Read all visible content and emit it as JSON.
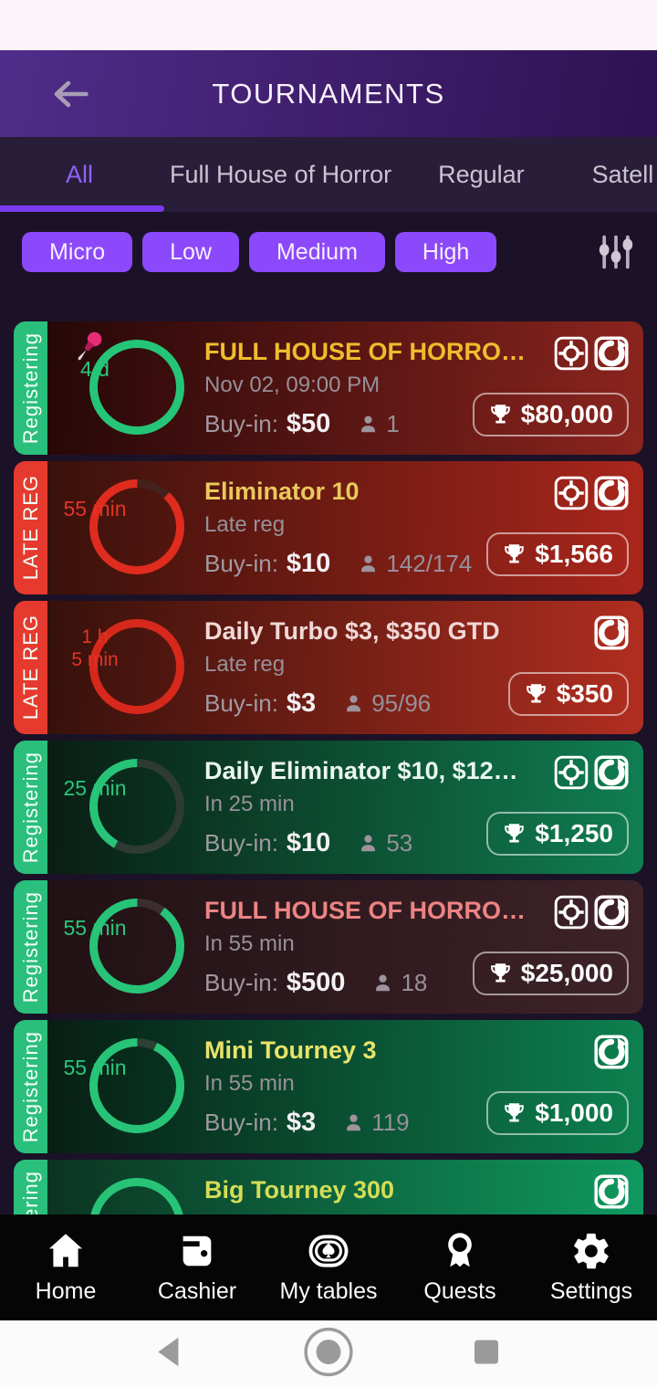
{
  "header": {
    "title": "TOURNAMENTS"
  },
  "tabs": [
    {
      "label": "All",
      "active": true
    },
    {
      "label": "Full House of Horror",
      "active": false
    },
    {
      "label": "Regular",
      "active": false
    },
    {
      "label": "Satell",
      "active": false
    }
  ],
  "filters": {
    "chips": [
      "Micro",
      "Low",
      "Medium",
      "High"
    ],
    "sliders_icon": "filter-sliders-icon"
  },
  "labels": {
    "buyin": "Buy-in:"
  },
  "colors": {
    "accent_purple": "#8b49fb",
    "active_tab": "#9162f5",
    "underline": "#7b3af2",
    "registering_green": "#2abf7b",
    "latereg_red": "#e73a2e"
  },
  "tournaments": [
    {
      "status": "Registering",
      "status_color": "#2abf7b",
      "pinned": true,
      "timer_lines": [
        "4 d"
      ],
      "timer_color": "#2bc77c",
      "ring": {
        "color": "#24c577",
        "track": "#3a2a28",
        "gap_pct": 0
      },
      "bg": [
        "#200607",
        "#8b241e"
      ],
      "title": "FULL HOUSE OF HORRO…",
      "title_color": "#eebd2e",
      "subtitle": "Nov 02, 09:00 PM",
      "buyin": "$50",
      "players": "1",
      "icons": [
        "target",
        "reentry"
      ],
      "prize": "$80,000"
    },
    {
      "status": "LATE REG",
      "status_color": "#e73a2e",
      "pinned": false,
      "timer_lines": [
        "55 min"
      ],
      "timer_color": "#e23526",
      "ring": {
        "color": "#e02b1f",
        "track": "#45211b",
        "gap_pct": 12
      },
      "bg": [
        "#33100a",
        "#aa261c"
      ],
      "title": "Eliminator 10",
      "title_color": "#e9c95b",
      "subtitle": "Late reg",
      "buyin": "$10",
      "players": "142/174",
      "icons": [
        "target",
        "reentry"
      ],
      "prize": "$1,566"
    },
    {
      "status": "LATE REG",
      "status_color": "#e73a2e",
      "pinned": false,
      "timer_lines": [
        "1 h",
        "5 min"
      ],
      "timer_color": "#e23526",
      "ring": {
        "color": "#d7281c",
        "track": "#45211b",
        "gap_pct": 0
      },
      "bg": [
        "#300f0a",
        "#b12e20"
      ],
      "title": "Daily Turbo $3, $350 GTD",
      "title_color": "#f1d8d6",
      "subtitle": "Late reg",
      "buyin": "$3",
      "players": "95/96",
      "icons": [
        "reentry"
      ],
      "prize": "$350"
    },
    {
      "status": "Registering",
      "status_color": "#2abf7b",
      "pinned": false,
      "timer_lines": [
        "25 min"
      ],
      "timer_color": "#2bc77c",
      "ring": {
        "color": "#27c478",
        "track": "#2d3b33",
        "gap_pct": 58
      },
      "bg": [
        "#09180f",
        "#107e52"
      ],
      "title": "Daily Eliminator $10, $12…",
      "title_color": "#eaf6ee",
      "subtitle": "In 25 min",
      "buyin": "$10",
      "players": "53",
      "icons": [
        "target",
        "reentry"
      ],
      "prize": "$1,250"
    },
    {
      "status": "Registering",
      "status_color": "#2abf7b",
      "pinned": false,
      "timer_lines": [
        "55 min"
      ],
      "timer_color": "#2bc77c",
      "ring": {
        "color": "#27c478",
        "track": "#3a2e31",
        "gap_pct": 10
      },
      "bg": [
        "#1f1013",
        "#3e2329"
      ],
      "title": "FULL HOUSE OF HORRO…",
      "title_color": "#ec8383",
      "subtitle": "In 55 min",
      "buyin": "$500",
      "players": "18",
      "icons": [
        "target",
        "reentry"
      ],
      "prize": "$25,000"
    },
    {
      "status": "Registering",
      "status_color": "#2abf7b",
      "pinned": false,
      "timer_lines": [
        "55 min"
      ],
      "timer_color": "#2bc77c",
      "ring": {
        "color": "#27c478",
        "track": "#2c4035",
        "gap_pct": 7
      },
      "bg": [
        "#071810",
        "#0d8150"
      ],
      "title": "Mini Tourney 3",
      "title_color": "#e8e36b",
      "subtitle": "In 55 min",
      "buyin": "$3",
      "players": "119",
      "icons": [
        "reentry"
      ],
      "prize": "$1,000"
    },
    {
      "status": "Registering",
      "status_color": "#2abf7b",
      "pinned": false,
      "timer_lines": [],
      "timer_color": "#2bc77c",
      "ring": {
        "color": "#27c478",
        "track": "#2c4035",
        "gap_pct": 0
      },
      "bg": [
        "#0b2e1e",
        "#0f9a60"
      ],
      "title": "Big Tourney 300",
      "title_color": "#d4dd55",
      "subtitle": "",
      "buyin": "",
      "players": "",
      "icons": [
        "reentry"
      ],
      "prize": ""
    }
  ],
  "bottom_nav": [
    {
      "label": "Home",
      "icon": "home-icon"
    },
    {
      "label": "Cashier",
      "icon": "wallet-icon"
    },
    {
      "label": "My tables",
      "icon": "table-spade-icon"
    },
    {
      "label": "Quests",
      "icon": "medal-icon"
    },
    {
      "label": "Settings",
      "icon": "gear-icon"
    }
  ],
  "android_nav": {
    "back": "back-triangle-icon",
    "home": "home-circle-icon",
    "recents": "recents-square-icon"
  }
}
